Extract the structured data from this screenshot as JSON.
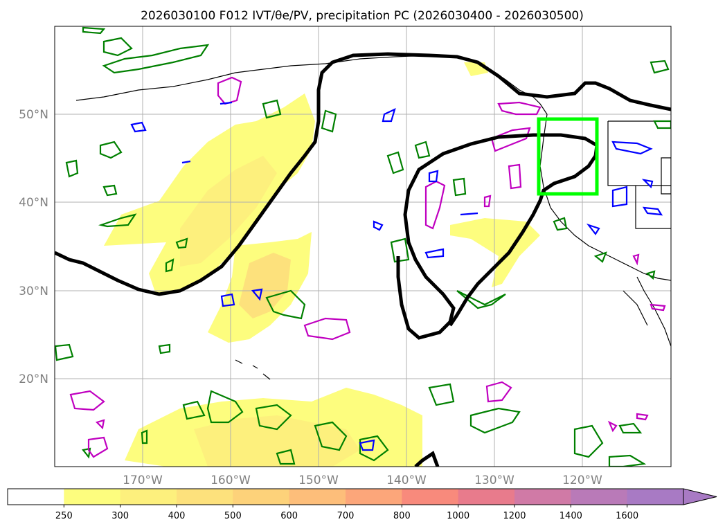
{
  "title": "2026030100 F012 IVT/θe/PV, precipitation PC (2026030400 - 2026030500)",
  "lat_labels": [
    "50°N",
    "40°N",
    "30°N",
    "20°N"
  ],
  "lon_labels": [
    "170°W",
    "160°W",
    "150°W",
    "140°W",
    "130°W",
    "120°W"
  ],
  "colorbar": {
    "ticks": [
      "250",
      "300",
      "400",
      "500",
      "600",
      "700",
      "800",
      "1000",
      "1200",
      "1400",
      "1600"
    ],
    "colors": [
      "#ffffff",
      "#fdfd7e",
      "#fdf07d",
      "#fde17c",
      "#fdd27a",
      "#fdbe7a",
      "#fca67a",
      "#f88a7c",
      "#e87b8c",
      "#d07aa6",
      "#b97ab8",
      "#a87ac4"
    ],
    "extend": "max"
  },
  "colors": {
    "ivt_fill": "#fdf07d",
    "theta_contour": "#008000",
    "pv_contour_magenta": "#c000c0",
    "pv_contour_blue": "#0000ff",
    "jet_contour": "#000000",
    "target_box": "#00ff00"
  }
}
